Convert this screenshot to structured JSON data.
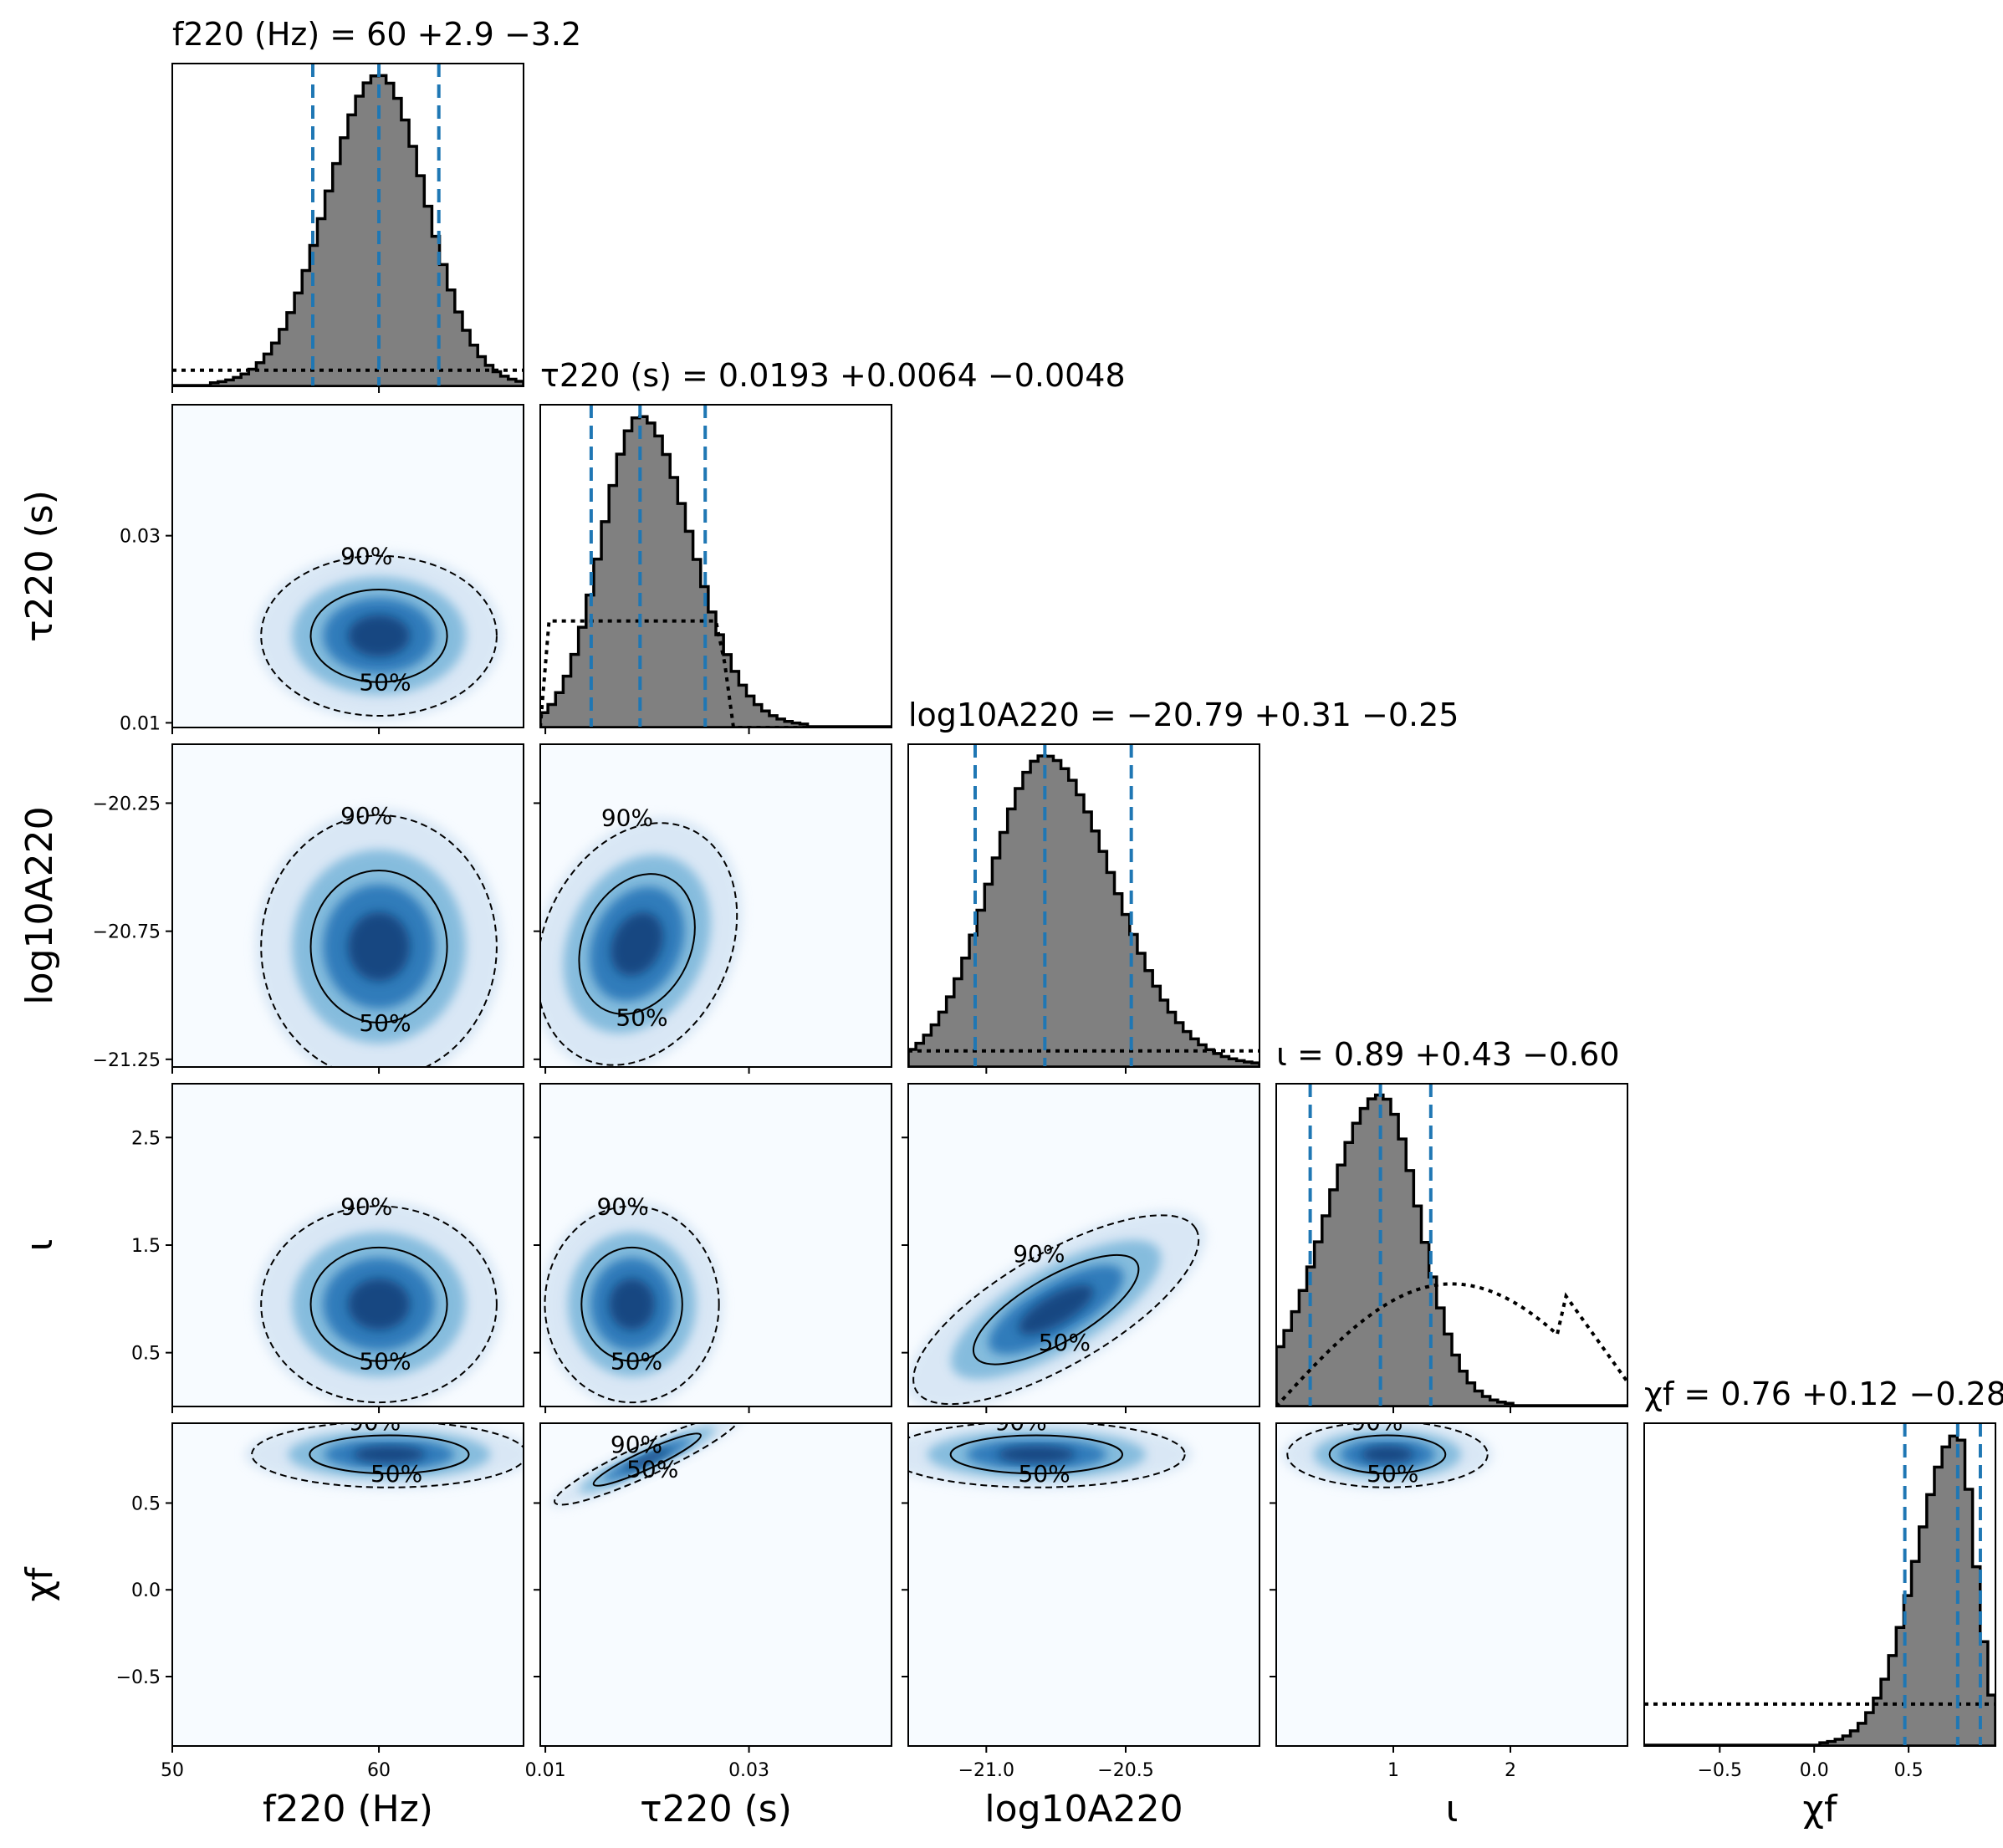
{
  "figure": {
    "background": "#ffffff",
    "colors": {
      "hist_fill": "#808080",
      "hist_edge": "#000000",
      "quantile_line": "#1f77b4",
      "density_low": "#f7fbff",
      "density_high": "#08306b"
    }
  },
  "chart_data": {
    "type": "corner",
    "parameters": [
      {
        "key": "f220",
        "label": "f220 (Hz)",
        "summary": "f220 (Hz) = 60 +2.9 −3.2",
        "median": 60,
        "lower_err": 3.2,
        "upper_err": 2.9,
        "range": [
          50,
          67
        ],
        "ticks": [
          50,
          60
        ],
        "tick_labels": [
          "50",
          "60"
        ]
      },
      {
        "key": "tau220",
        "label": "τ220 (s)",
        "summary": "τ220 (s) = 0.0193 +0.0064 −0.0048",
        "median": 0.0193,
        "lower_err": 0.0048,
        "upper_err": 0.0064,
        "range": [
          0.0095,
          0.044
        ],
        "ticks": [
          0.01,
          0.03
        ],
        "tick_labels": [
          "0.01",
          "0.03"
        ]
      },
      {
        "key": "logA220",
        "label": "log10A220",
        "summary": "log10A220 = −20.79 +0.31 −0.25",
        "median": -20.79,
        "lower_err": 0.25,
        "upper_err": 0.31,
        "range": [
          -21.28,
          -20.02
        ],
        "ticks": [
          -21.0,
          -20.5
        ],
        "tick_labels": [
          "−21.0",
          "−20.5"
        ],
        "y_ticks": [
          -20.25,
          -20.75,
          -21.25
        ],
        "y_tick_labels": [
          "−20.25",
          "−20.75",
          "−21.25"
        ]
      },
      {
        "key": "iota",
        "label": "ι",
        "summary": "ι = 0.89 +0.43 −0.60",
        "median": 0.89,
        "lower_err": 0.6,
        "upper_err": 0.43,
        "range": [
          0,
          3.0
        ],
        "ticks": [
          1,
          2
        ],
        "tick_labels": [
          "1",
          "2"
        ],
        "y_ticks": [
          2.5,
          1.5,
          0.5
        ],
        "y_tick_labels": [
          "2.5",
          "1.5",
          "0.5"
        ]
      },
      {
        "key": "chif",
        "label": "χf",
        "summary": "χf = 0.76 +0.12 −0.28",
        "median": 0.76,
        "lower_err": 0.28,
        "upper_err": 0.12,
        "range": [
          -0.9,
          0.96
        ],
        "ticks": [
          -0.5,
          0.0,
          0.5
        ],
        "tick_labels": [
          "−0.5",
          "0.0",
          "0.5"
        ],
        "y_ticks": [
          0.5,
          0.0,
          -0.5
        ],
        "y_tick_labels": [
          "0.5",
          "0.0",
          "−0.5"
        ]
      }
    ],
    "axis_labels": {
      "x": [
        "f220 (Hz)",
        "τ220 (s)",
        "log10A220",
        "ι",
        "χf"
      ],
      "y": [
        "τ220 (s)",
        "log10A220",
        "ι",
        "χf"
      ]
    },
    "y_tick_labels_tau": [
      "0.03",
      "0.01"
    ],
    "y_ticks_tau": [
      0.03,
      0.01
    ],
    "contour_levels": [
      "50%",
      "90%"
    ],
    "pair_posteriors": [
      {
        "x": "f220",
        "y": "tau220",
        "center": [
          60,
          0.0193
        ],
        "spread": [
          3.0,
          0.0045
        ],
        "corr": 0.0
      },
      {
        "x": "f220",
        "y": "logA220",
        "center": [
          60,
          -20.81
        ],
        "spread": [
          3.0,
          0.27
        ],
        "corr": 0.0
      },
      {
        "x": "tau220",
        "y": "logA220",
        "center": [
          0.019,
          -20.8
        ],
        "spread": [
          0.0048,
          0.26
        ],
        "corr": -0.35
      },
      {
        "x": "f220",
        "y": "iota",
        "center": [
          60,
          0.95
        ],
        "spread": [
          3.0,
          0.48
        ],
        "corr": 0.0
      },
      {
        "x": "tau220",
        "y": "iota",
        "center": [
          0.0185,
          0.95
        ],
        "spread": [
          0.0045,
          0.48
        ],
        "corr": 0.0
      },
      {
        "x": "logA220",
        "y": "iota",
        "center": [
          -20.75,
          0.9
        ],
        "spread": [
          0.27,
          0.45
        ],
        "corr": 0.9
      },
      {
        "x": "iota",
        "y": "chif",
        "center": [
          0.95,
          0.78
        ],
        "spread": [
          0.45,
          0.1
        ],
        "corr": 0.0
      },
      {
        "x": "f220",
        "y": "chif",
        "center": [
          60.5,
          0.78
        ],
        "spread": [
          3.5,
          0.1
        ],
        "corr": 0.0
      },
      {
        "x": "tau220",
        "y": "chif",
        "center": [
          0.02,
          0.75
        ],
        "spread": [
          0.005,
          0.14
        ],
        "corr": 0.97
      },
      {
        "x": "logA220",
        "y": "chif",
        "center": [
          -20.82,
          0.78
        ],
        "spread": [
          0.28,
          0.1
        ],
        "corr": 0.0
      }
    ]
  }
}
